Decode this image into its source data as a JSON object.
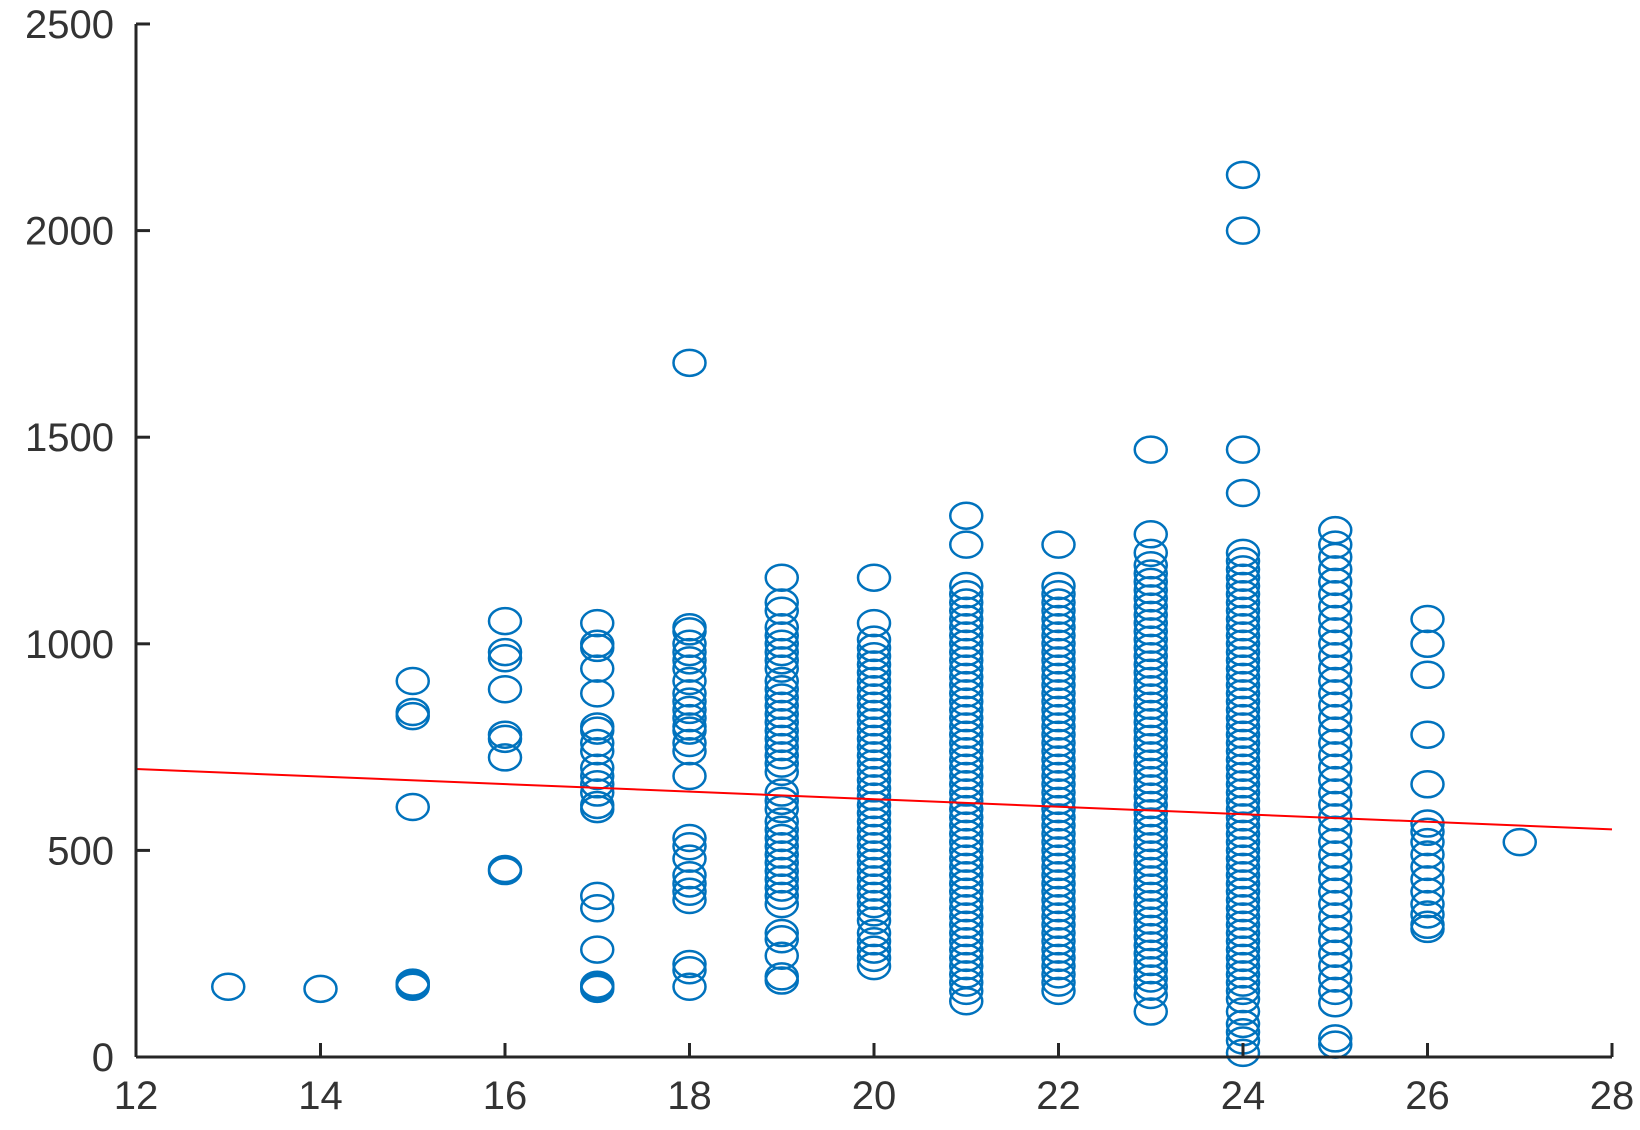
{
  "chart_data": {
    "type": "scatter",
    "title": "",
    "xlabel": "",
    "ylabel": "",
    "xlim": [
      12,
      28
    ],
    "ylim": [
      0,
      2500
    ],
    "x_ticks": [
      "12",
      "14",
      "16",
      "18",
      "20",
      "22",
      "24",
      "26",
      "28"
    ],
    "y_ticks": [
      "0",
      "500",
      "1000",
      "1500",
      "2000",
      "2500"
    ],
    "grid": false,
    "colors": {
      "marker": "#0072BD",
      "fit_line": "#FF0000",
      "axis": "#262626"
    },
    "series": [
      {
        "type": "scatter",
        "marker": "open-circle",
        "groups": [
          {
            "x": 13,
            "values": [
              170
            ]
          },
          {
            "x": 14,
            "values": [
              165
            ]
          },
          {
            "x": 15,
            "values": [
              910,
              835,
              825,
              605,
              180,
              175,
              170
            ]
          },
          {
            "x": 16,
            "values": [
              1055,
              980,
              965,
              890,
              780,
              770,
              725,
              455,
              450
            ]
          },
          {
            "x": 17,
            "values": [
              1050,
              1000,
              990,
              940,
              880,
              800,
              790,
              760,
              740,
              700,
              680,
              660,
              640,
              610,
              600,
              390,
              360,
              260,
              175,
              170,
              165
            ]
          },
          {
            "x": 18,
            "values": [
              1680,
              1040,
              1030,
              1000,
              980,
              960,
              940,
              910,
              880,
              860,
              840,
              820,
              800,
              790,
              760,
              740,
              680,
              530,
              510,
              480,
              440,
              420,
              400,
              380,
              225,
              210,
              170
            ]
          },
          {
            "x": 19,
            "values": [
              1160,
              1100,
              1080,
              1040,
              1020,
              1000,
              980,
              960,
              940,
              910,
              890,
              870,
              850,
              830,
              810,
              790,
              770,
              750,
              730,
              710,
              690,
              640,
              620,
              600,
              570,
              550,
              530,
              510,
              490,
              470,
              450,
              430,
              410,
              390,
              370,
              300,
              285,
              245,
              195,
              185
            ]
          },
          {
            "x": 20,
            "values": [
              1160,
              1050,
              1010,
              990,
              970,
              950,
              930,
              910,
              890,
              870,
              850,
              830,
              810,
              790,
              770,
              750,
              730,
              710,
              690,
              670,
              650,
              630,
              610,
              590,
              570,
              550,
              530,
              510,
              490,
              470,
              450,
              430,
              410,
              390,
              370,
              350,
              330,
              300,
              280,
              260,
              240,
              220
            ]
          },
          {
            "x": 21,
            "values": [
              1310,
              1240,
              1140,
              1120,
              1100,
              1080,
              1060,
              1040,
              1020,
              1000,
              980,
              960,
              940,
              920,
              900,
              880,
              860,
              840,
              820,
              800,
              780,
              760,
              740,
              720,
              700,
              680,
              660,
              640,
              620,
              600,
              580,
              560,
              540,
              520,
              500,
              480,
              460,
              440,
              420,
              400,
              380,
              360,
              340,
              320,
              300,
              280,
              260,
              240,
              220,
              200,
              180,
              160,
              135
            ]
          },
          {
            "x": 22,
            "values": [
              1240,
              1140,
              1120,
              1100,
              1080,
              1060,
              1040,
              1020,
              1000,
              980,
              960,
              940,
              920,
              900,
              880,
              860,
              840,
              820,
              800,
              780,
              760,
              740,
              720,
              700,
              680,
              660,
              640,
              620,
              600,
              580,
              560,
              540,
              520,
              500,
              480,
              460,
              440,
              420,
              400,
              380,
              360,
              340,
              320,
              300,
              280,
              260,
              240,
              220,
              200,
              180,
              160
            ]
          },
          {
            "x": 23,
            "values": [
              1470,
              1265,
              1220,
              1190,
              1170,
              1150,
              1130,
              1110,
              1090,
              1070,
              1050,
              1030,
              1010,
              990,
              970,
              950,
              930,
              910,
              890,
              870,
              850,
              830,
              810,
              790,
              770,
              750,
              730,
              710,
              690,
              670,
              650,
              630,
              610,
              590,
              570,
              550,
              530,
              510,
              490,
              470,
              450,
              430,
              410,
              390,
              370,
              350,
              330,
              310,
              290,
              270,
              250,
              230,
              210,
              190,
              170,
              150,
              110
            ]
          },
          {
            "x": 24,
            "values": [
              2135,
              2000,
              1470,
              1365,
              1220,
              1200,
              1180,
              1160,
              1140,
              1120,
              1100,
              1080,
              1060,
              1040,
              1020,
              1000,
              980,
              960,
              940,
              920,
              900,
              880,
              860,
              840,
              820,
              800,
              780,
              760,
              740,
              720,
              700,
              680,
              660,
              640,
              620,
              600,
              580,
              560,
              540,
              520,
              500,
              480,
              460,
              440,
              420,
              400,
              380,
              360,
              340,
              320,
              300,
              280,
              260,
              240,
              220,
              200,
              180,
              160,
              140,
              110,
              80,
              60,
              40,
              10
            ]
          },
          {
            "x": 25,
            "values": [
              1275,
              1240,
              1210,
              1180,
              1150,
              1120,
              1090,
              1060,
              1030,
              1000,
              970,
              940,
              910,
              880,
              850,
              820,
              790,
              760,
              730,
              700,
              670,
              640,
              610,
              580,
              550,
              520,
              490,
              460,
              430,
              400,
              370,
              340,
              310,
              280,
              250,
              220,
              190,
              160,
              130,
              45,
              30
            ]
          },
          {
            "x": 26,
            "values": [
              1060,
              1000,
              925,
              780,
              660,
              565,
              545,
              520,
              490,
              460,
              430,
              400,
              370,
              345,
              320,
              310
            ]
          },
          {
            "x": 27,
            "values": [
              520
            ]
          }
        ]
      },
      {
        "type": "line",
        "x": [
          12,
          28
        ],
        "y": [
          697,
          551
        ]
      }
    ]
  }
}
